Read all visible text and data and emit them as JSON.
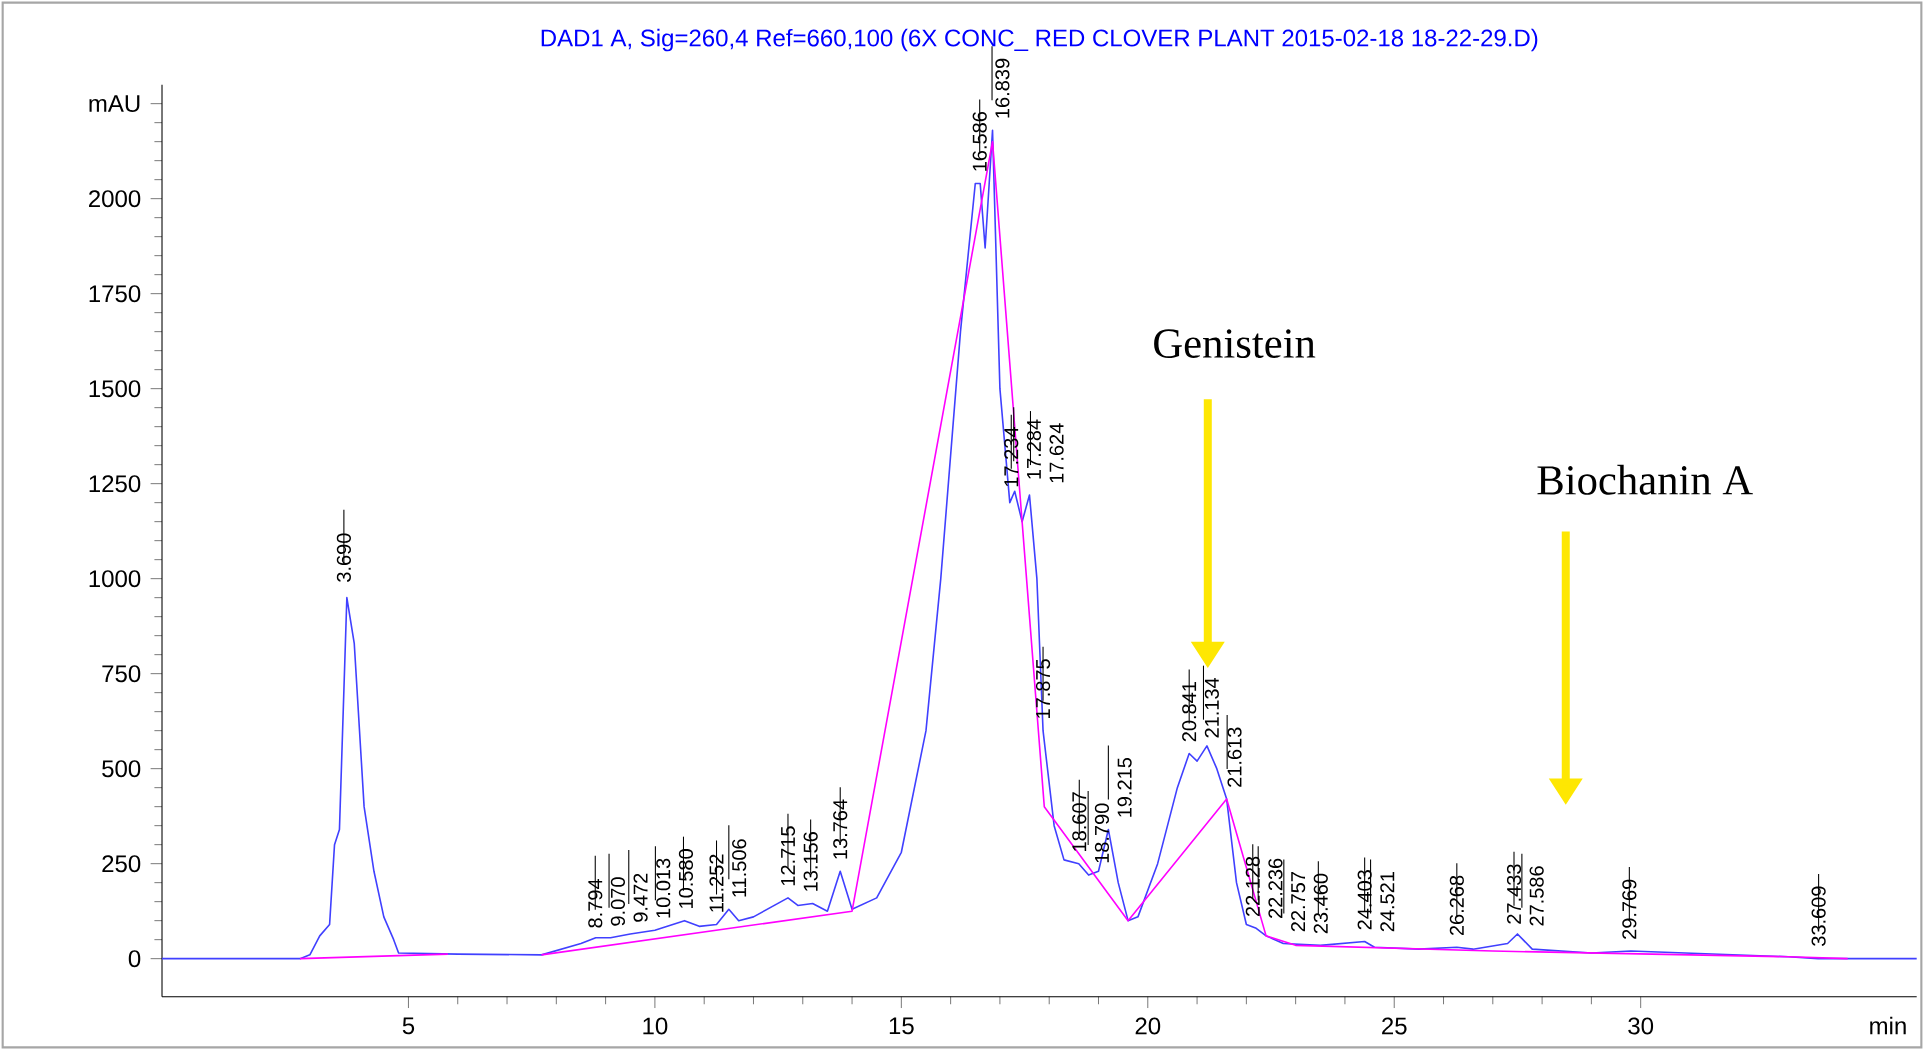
{
  "chart_data": {
    "type": "line",
    "title": "DAD1 A, Sig=260,4 Ref=660,100 (6X CONC_ RED CLOVER PLANT 2015-02-18 18-22-29.D)",
    "xlabel": "min",
    "xlim": [
      0,
      35.6
    ],
    "xticks": [
      5,
      10,
      15,
      20,
      25,
      30
    ],
    "ylim": [
      -100,
      2300
    ],
    "yticks": [
      0,
      250,
      500,
      750,
      1000,
      1250,
      1500,
      1750,
      2000,
      {
        "value": 2250,
        "label": "mAU"
      }
    ],
    "series": [
      {
        "color": "#4040ff",
        "x": [
          0,
          2.8,
          3.0,
          3.2,
          3.4,
          3.5,
          3.6,
          3.75,
          3.9,
          4.1,
          4.3,
          4.5,
          4.7,
          4.8,
          6,
          7.7,
          8.5,
          8.8,
          9.1,
          9.5,
          10,
          10.6,
          10.9,
          11.25,
          11.5,
          11.7,
          12,
          12.7,
          12.9,
          13.2,
          13.5,
          13.76,
          14,
          14.5,
          15,
          15.5,
          15.8,
          16.2,
          16.5,
          16.6,
          16.7,
          16.85,
          17.0,
          17.2,
          17.3,
          17.45,
          17.6,
          17.75,
          17.875,
          18.1,
          18.3,
          18.6,
          18.8,
          19.0,
          19.2,
          19.4,
          19.6,
          19.8,
          20.2,
          20.6,
          20.84,
          21.0,
          21.2,
          21.4,
          21.6,
          21.8,
          22.0,
          22.2,
          22.4,
          22.75,
          23.5,
          24.4,
          24.6,
          25.5,
          26.27,
          26.6,
          27.3,
          27.5,
          27.8,
          29.0,
          29.8,
          33.0,
          33.6,
          35.6
        ],
        "values": [
          0,
          0,
          10,
          60,
          90,
          300,
          340,
          950,
          830,
          400,
          230,
          110,
          50,
          15,
          12,
          10,
          40,
          55,
          55,
          65,
          75,
          100,
          85,
          90,
          130,
          100,
          110,
          160,
          140,
          145,
          125,
          230,
          130,
          160,
          280,
          600,
          1000,
          1650,
          2040,
          2040,
          1870,
          2180,
          1500,
          1200,
          1230,
          1150,
          1220,
          1000,
          600,
          350,
          260,
          250,
          220,
          230,
          340,
          200,
          100,
          110,
          250,
          450,
          540,
          520,
          560,
          500,
          420,
          200,
          90,
          80,
          60,
          40,
          35,
          45,
          30,
          25,
          30,
          25,
          40,
          65,
          25,
          15,
          20,
          5,
          0,
          0
        ]
      },
      {
        "color": "#ff00ff",
        "x": [
          2.8,
          5.8,
          6.5,
          7.7,
          14.0,
          16.85,
          17.9,
          19.6,
          21.6,
          22.4,
          23.0,
          27.0,
          33.0,
          34.2
        ],
        "values": [
          0,
          12,
          null,
          10,
          125,
          2150,
          400,
          100,
          420,
          60,
          35,
          20,
          5,
          0
        ]
      }
    ],
    "annotations": [
      "Genistein",
      "Biochanin A",
      {
        "text": "3.690",
        "x": 3.69,
        "y": 960
      },
      {
        "text": "8.794",
        "x": 8.79,
        "y": 50
      },
      {
        "text": "9.070",
        "x": 9.07,
        "y": 55
      },
      {
        "text": "9.472",
        "x": 9.47,
        "y": 65
      },
      {
        "text": "10.013",
        "x": 10.01,
        "y": 75
      },
      {
        "text": "10.580",
        "x": 10.58,
        "y": 100
      },
      {
        "text": "11.252",
        "x": 11.25,
        "y": 90
      },
      {
        "text": "11.506",
        "x": 11.5,
        "y": 130
      },
      {
        "text": "12.715",
        "x": 12.7,
        "y": 160
      },
      {
        "text": "13.156",
        "x": 13.16,
        "y": 145
      },
      {
        "text": "13.764",
        "x": 13.76,
        "y": 230
      },
      {
        "text": "16.586",
        "x": 16.59,
        "y": 2040
      },
      {
        "text": "16.839",
        "x": 16.84,
        "y": 2180
      },
      {
        "text": "17.234",
        "x": 17.23,
        "y": 1210
      },
      {
        "text": "17.284",
        "x": 17.28,
        "y": 1230
      },
      {
        "text": "17.624",
        "x": 17.62,
        "y": 1220
      },
      {
        "text": "17.875",
        "x": 17.875,
        "y": 600
      },
      {
        "text": "18.607",
        "x": 18.61,
        "y": 250
      },
      {
        "text": "18.790",
        "x": 18.79,
        "y": 220
      },
      {
        "text": "19.215",
        "x": 19.2,
        "y": 340
      },
      {
        "text": "20.841",
        "x": 20.84,
        "y": 540
      },
      {
        "text": "21.134",
        "x": 21.13,
        "y": 550
      },
      {
        "text": "21.613",
        "x": 21.61,
        "y": 420
      },
      {
        "text": "22.128",
        "x": 22.13,
        "y": 80
      },
      {
        "text": "22.236",
        "x": 22.24,
        "y": 75
      },
      {
        "text": "22.757",
        "x": 22.76,
        "y": 40
      },
      {
        "text": "23.460",
        "x": 23.46,
        "y": 35
      },
      {
        "text": "24.403",
        "x": 24.4,
        "y": 45
      },
      {
        "text": "24.521",
        "x": 24.52,
        "y": 40
      },
      {
        "text": "26.268",
        "x": 26.27,
        "y": 30
      },
      {
        "text": "27.433",
        "x": 27.43,
        "y": 60
      },
      {
        "text": "27.586",
        "x": 27.59,
        "y": 55
      },
      {
        "text": "29.769",
        "x": 29.77,
        "y": 20
      },
      {
        "text": "33.609",
        "x": 33.61,
        "y": 2
      }
    ]
  }
}
